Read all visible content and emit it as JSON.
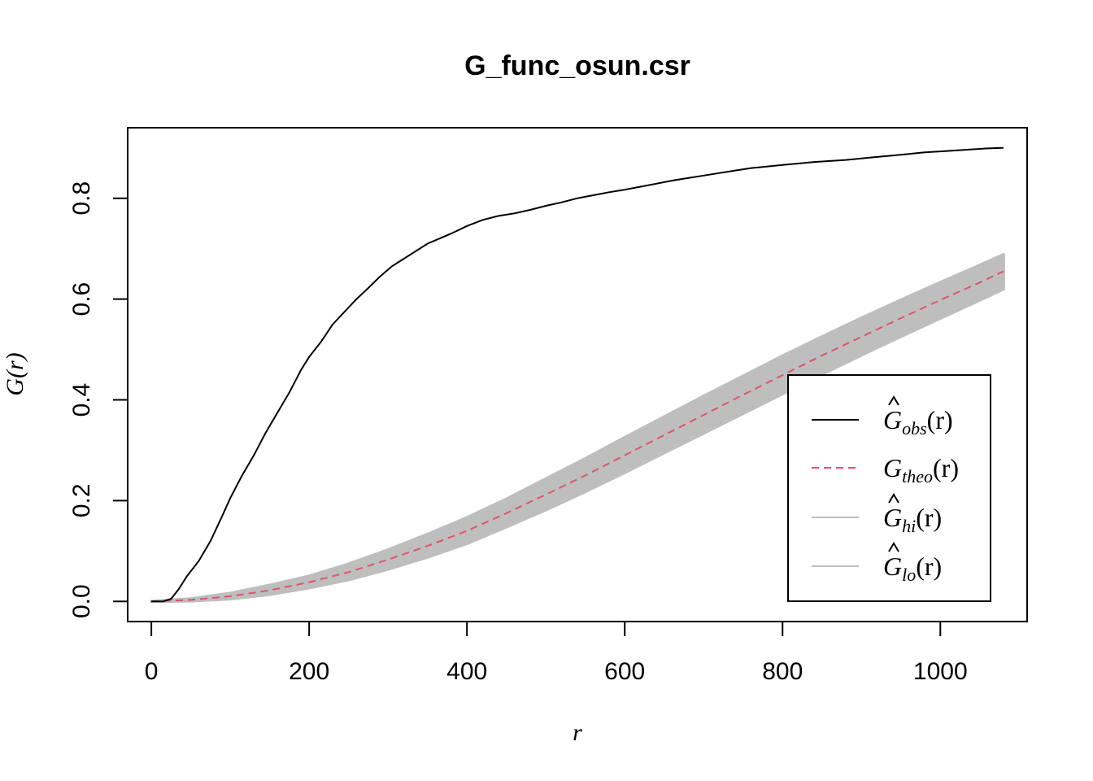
{
  "chart_data": {
    "type": "line",
    "title": "G_func_osun.csr",
    "xlabel": "r",
    "ylabel": "G(r)",
    "xlim": [
      -30,
      1110
    ],
    "ylim": [
      -0.04,
      0.94
    ],
    "x_ticks": [
      0,
      200,
      400,
      600,
      800,
      1000
    ],
    "y_ticks": [
      0.0,
      0.2,
      0.4,
      0.6,
      0.8
    ],
    "x_tick_labels": [
      "0",
      "200",
      "400",
      "600",
      "800",
      "1000"
    ],
    "y_tick_labels": [
      "0.0",
      "0.2",
      "0.4",
      "0.6",
      "0.8"
    ],
    "grid": false,
    "legend_position": "bottom-right",
    "legend": [
      {
        "label_main": "G",
        "label_sub": "obs",
        "label_tail": "(r)",
        "hat": true,
        "color": "#000000",
        "dash": "solid"
      },
      {
        "label_main": "G",
        "label_sub": "theo",
        "label_tail": "(r)",
        "hat": false,
        "color": "#DF536B",
        "dash": "dashed"
      },
      {
        "label_main": "G",
        "label_sub": "hi",
        "label_tail": "(r)",
        "hat": true,
        "color": "#BEBEBE",
        "dash": "solid"
      },
      {
        "label_main": "G",
        "label_sub": "lo",
        "label_tail": "(r)",
        "hat": true,
        "color": "#BEBEBE",
        "dash": "solid"
      }
    ],
    "series": [
      {
        "name": "obs",
        "color": "#000000",
        "x": [
          0,
          15,
          25,
          35,
          45,
          60,
          75,
          90,
          100,
          115,
          130,
          145,
          160,
          175,
          190,
          200,
          215,
          230,
          245,
          260,
          275,
          290,
          305,
          320,
          335,
          350,
          365,
          380,
          400,
          420,
          440,
          460,
          480,
          500,
          520,
          540,
          560,
          580,
          600,
          620,
          640,
          660,
          680,
          700,
          720,
          740,
          760,
          780,
          800,
          820,
          840,
          860,
          880,
          900,
          920,
          940,
          960,
          980,
          1000,
          1020,
          1040,
          1060,
          1080
        ],
        "y": [
          0.0,
          0.0,
          0.005,
          0.025,
          0.05,
          0.08,
          0.12,
          0.17,
          0.205,
          0.25,
          0.29,
          0.335,
          0.375,
          0.415,
          0.46,
          0.485,
          0.515,
          0.55,
          0.575,
          0.6,
          0.622,
          0.645,
          0.665,
          0.68,
          0.695,
          0.71,
          0.72,
          0.73,
          0.745,
          0.757,
          0.765,
          0.77,
          0.777,
          0.785,
          0.792,
          0.8,
          0.806,
          0.812,
          0.817,
          0.823,
          0.829,
          0.835,
          0.84,
          0.845,
          0.85,
          0.855,
          0.86,
          0.863,
          0.866,
          0.869,
          0.872,
          0.874,
          0.876,
          0.879,
          0.882,
          0.885,
          0.888,
          0.891,
          0.893,
          0.895,
          0.897,
          0.899,
          0.9
        ]
      },
      {
        "name": "theo",
        "color": "#DF536B",
        "x": [
          0,
          50,
          100,
          150,
          200,
          250,
          300,
          350,
          400,
          450,
          500,
          550,
          600,
          650,
          700,
          750,
          800,
          850,
          900,
          950,
          1000,
          1050,
          1080
        ],
        "y": [
          0.0,
          0.003,
          0.01,
          0.022,
          0.038,
          0.058,
          0.083,
          0.11,
          0.14,
          0.175,
          0.212,
          0.25,
          0.29,
          0.33,
          0.37,
          0.41,
          0.449,
          0.488,
          0.525,
          0.562,
          0.598,
          0.633,
          0.655
        ]
      },
      {
        "name": "hi",
        "color": "#BEBEBE",
        "x": [
          0,
          50,
          100,
          150,
          200,
          250,
          300,
          350,
          400,
          450,
          500,
          550,
          600,
          650,
          700,
          750,
          800,
          850,
          900,
          950,
          1000,
          1050,
          1080
        ],
        "y": [
          0.0,
          0.005,
          0.016,
          0.032,
          0.05,
          0.074,
          0.102,
          0.133,
          0.166,
          0.203,
          0.243,
          0.283,
          0.325,
          0.366,
          0.407,
          0.447,
          0.487,
          0.525,
          0.562,
          0.598,
          0.633,
          0.667,
          0.688
        ]
      },
      {
        "name": "lo",
        "color": "#BEBEBE",
        "x": [
          0,
          50,
          100,
          150,
          200,
          250,
          300,
          350,
          400,
          450,
          500,
          550,
          600,
          650,
          700,
          750,
          800,
          850,
          900,
          950,
          1000,
          1050,
          1080
        ],
        "y": [
          0.0,
          0.001,
          0.005,
          0.014,
          0.027,
          0.043,
          0.064,
          0.088,
          0.115,
          0.148,
          0.182,
          0.218,
          0.256,
          0.295,
          0.334,
          0.373,
          0.412,
          0.451,
          0.489,
          0.526,
          0.562,
          0.598,
          0.62
        ]
      }
    ]
  }
}
